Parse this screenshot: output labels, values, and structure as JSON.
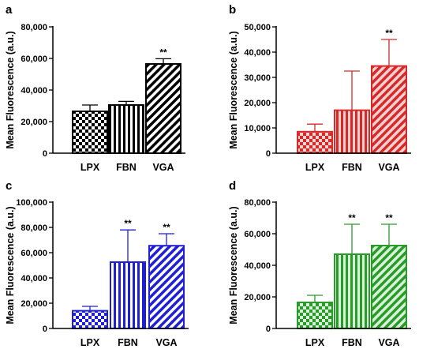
{
  "chart_data": [
    {
      "panel": "a",
      "type": "bar",
      "ylabel": "Mean Fluorescence (a.u.)",
      "categories": [
        "LPX",
        "FBN",
        "VGA"
      ],
      "values": [
        26500,
        30500,
        56500
      ],
      "errors": [
        4000,
        2300,
        3300
      ],
      "annotations": [
        "",
        "",
        "**"
      ],
      "ylim": [
        0,
        80000
      ],
      "yticks": [
        0,
        20000,
        40000,
        60000,
        80000
      ],
      "ytick_labels": [
        "0",
        "20,000",
        "40,000",
        "60,000",
        "80,000"
      ],
      "patterns": [
        "checker",
        "vertical",
        "diagonal"
      ],
      "bar_color": "#000000",
      "fill_color": "#ffffff"
    },
    {
      "panel": "b",
      "type": "bar",
      "ylabel": "Mean Fluorescence (a.u.)",
      "categories": [
        "LPX",
        "FBN",
        "VGA"
      ],
      "values": [
        8500,
        17000,
        34500
      ],
      "errors": [
        3000,
        15500,
        10500
      ],
      "annotations": [
        "",
        "",
        "**"
      ],
      "ylim": [
        0,
        50000
      ],
      "yticks": [
        0,
        10000,
        20000,
        30000,
        40000,
        50000
      ],
      "ytick_labels": [
        "0",
        "10,000",
        "20,000",
        "30,000",
        "40,000",
        "50,000"
      ],
      "patterns": [
        "checker",
        "vertical",
        "diagonal"
      ],
      "bar_color": "#d42a2a",
      "fill_color": "#ffd0d0"
    },
    {
      "panel": "c",
      "type": "bar",
      "ylabel": "Mean Fluorescence (a.u.)",
      "categories": [
        "LPX",
        "FBN",
        "VGA"
      ],
      "values": [
        14000,
        52500,
        65500
      ],
      "errors": [
        3500,
        25500,
        9500
      ],
      "annotations": [
        "",
        "**",
        "**"
      ],
      "ylim": [
        0,
        100000
      ],
      "yticks": [
        0,
        20000,
        40000,
        60000,
        80000,
        100000
      ],
      "ytick_labels": [
        "0",
        "20,000",
        "40,000",
        "60,000",
        "80,000",
        "100,000"
      ],
      "patterns": [
        "checker",
        "vertical",
        "diagonal"
      ],
      "bar_color": "#1f1fd6",
      "fill_color": "#ffffff"
    },
    {
      "panel": "d",
      "type": "bar",
      "ylabel": "Mean Fluorescence (a.u.)",
      "categories": [
        "LPX",
        "FBN",
        "VGA"
      ],
      "values": [
        16500,
        47000,
        52500
      ],
      "errors": [
        4500,
        19000,
        13500
      ],
      "annotations": [
        "",
        "**",
        "**"
      ],
      "ylim": [
        0,
        80000
      ],
      "yticks": [
        0,
        20000,
        40000,
        60000,
        80000
      ],
      "ytick_labels": [
        "0",
        "20,000",
        "40,000",
        "60,000",
        "80,000"
      ],
      "patterns": [
        "checker",
        "vertical",
        "diagonal"
      ],
      "bar_color": "#2a9a2a",
      "fill_color": "#d8f4d8"
    }
  ]
}
